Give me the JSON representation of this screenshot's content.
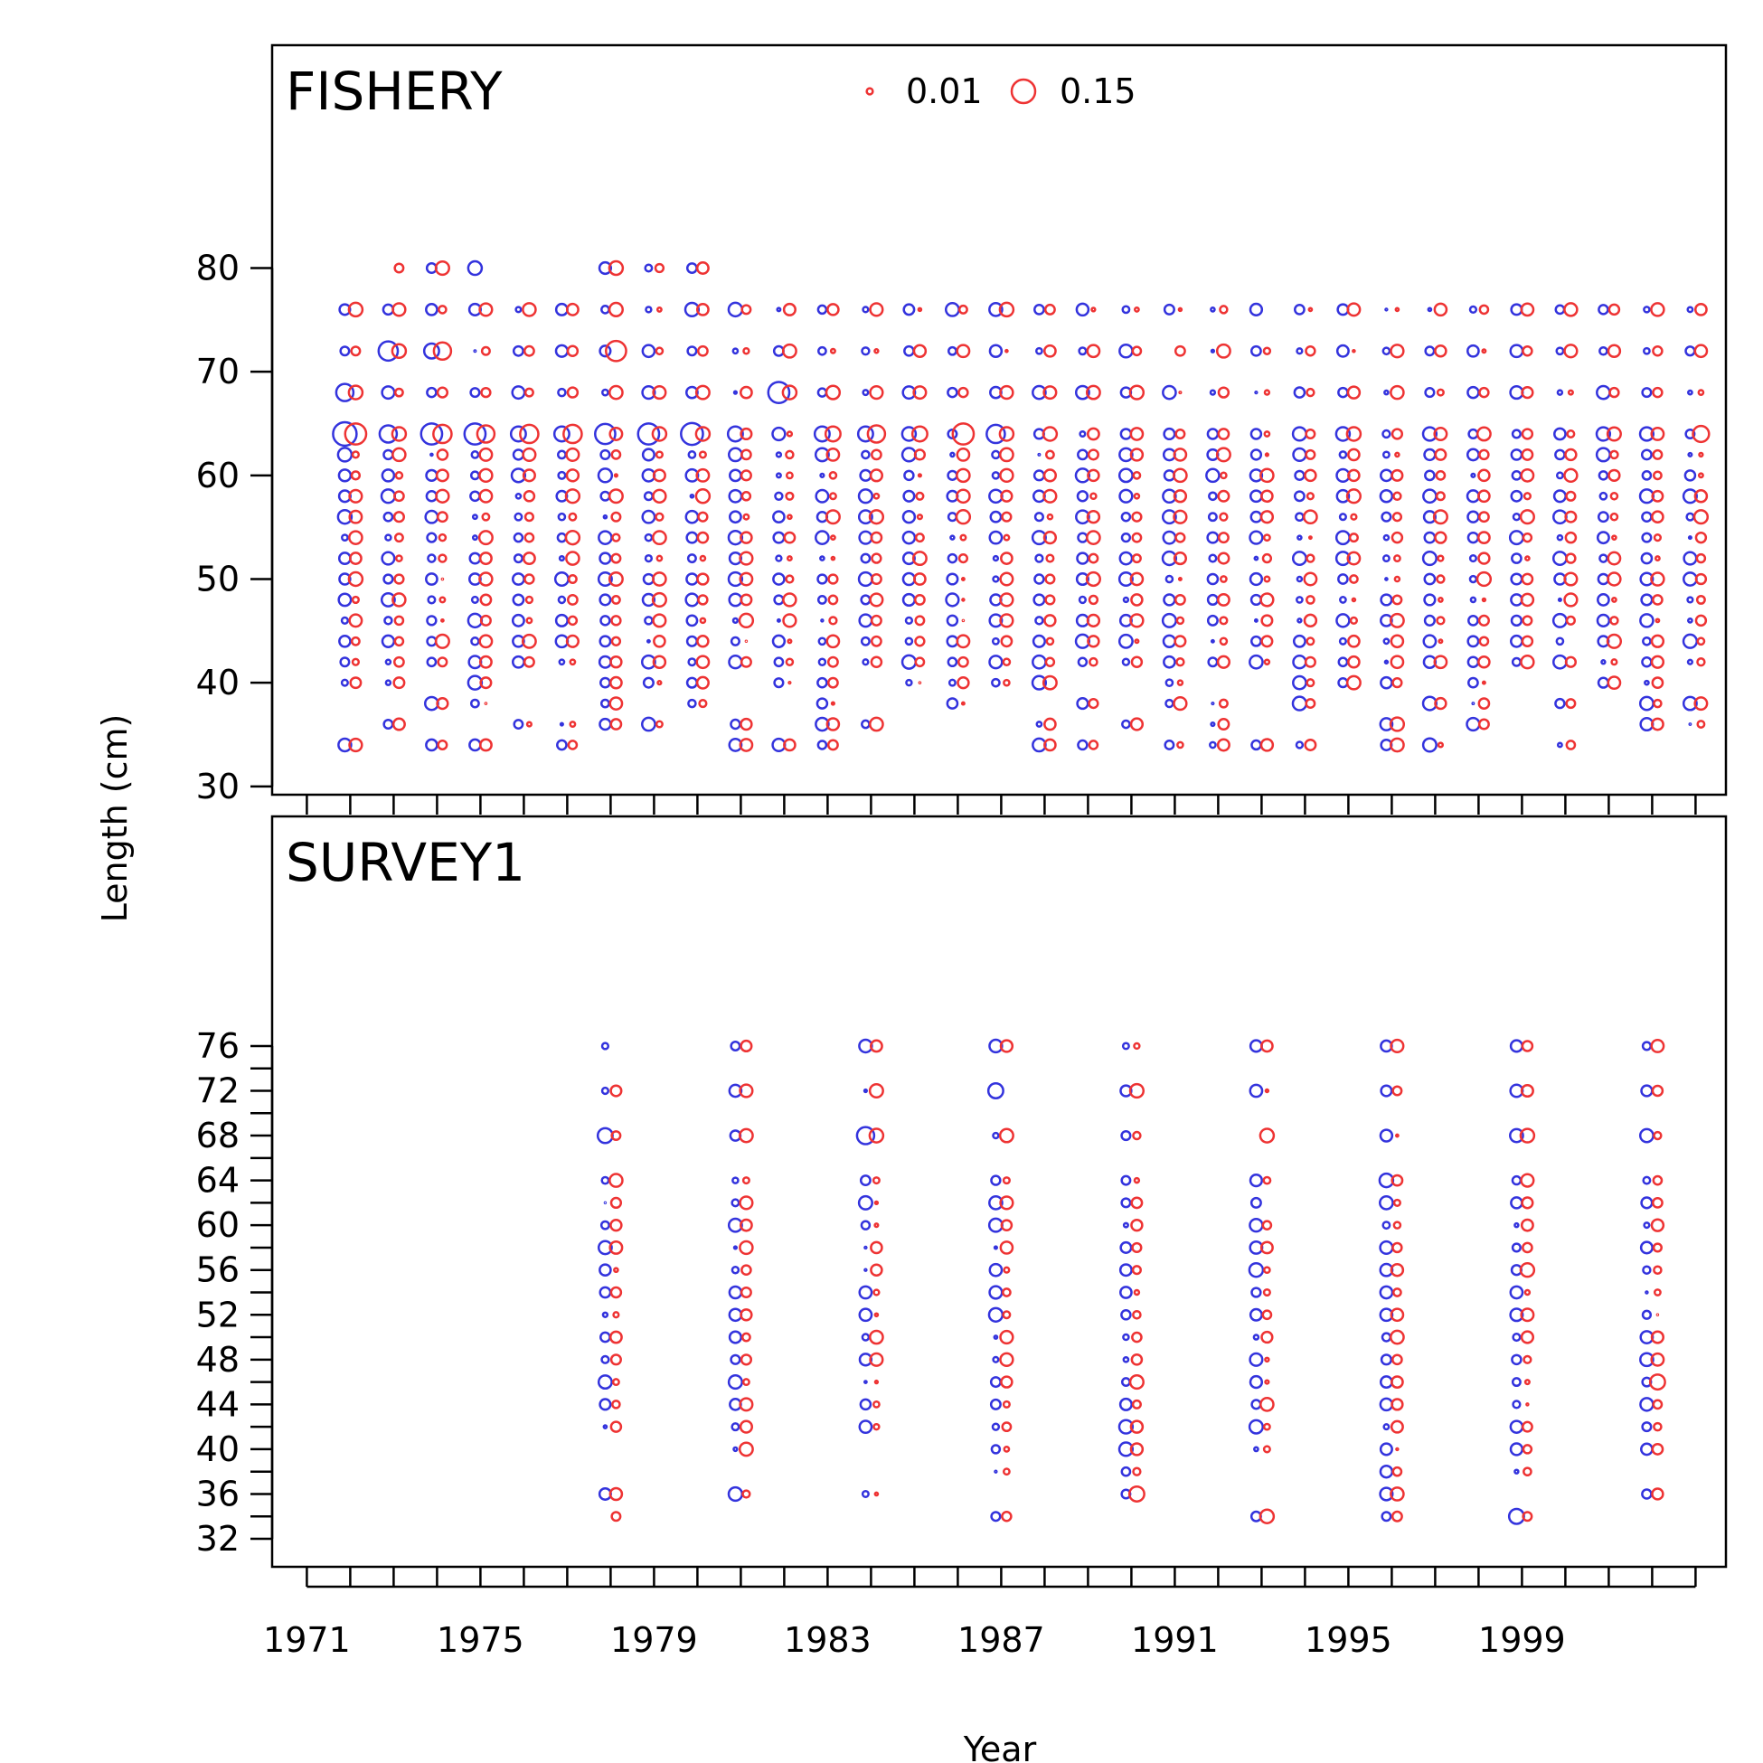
{
  "chart_data": {
    "type": "scatter",
    "subtype": "bubble",
    "xlabel": "Year",
    "ylabel": "Length (cm)",
    "x_ticks": [
      1971,
      1975,
      1979,
      1983,
      1987,
      1991,
      1995,
      1999
    ],
    "xlim": [
      1970.2,
      2003.7
    ],
    "legend": {
      "position": "top-center",
      "entries": [
        {
          "label": "0.01",
          "value": 0.01
        },
        {
          "label": "0.15",
          "value": 0.15
        }
      ]
    },
    "colors": {
      "series_a": "#3333dd",
      "series_b": "#ee3333"
    },
    "panels": [
      {
        "title": "FISHERY",
        "y_ticks": [
          30,
          40,
          50,
          60,
          70,
          80
        ],
        "ylim": [
          29.2,
          101.5
        ],
        "length_bins": [
          42,
          44,
          46,
          48,
          50,
          52,
          54,
          56,
          58,
          60,
          62,
          64,
          68,
          72,
          76
        ],
        "years": [
          1972,
          1973,
          1974,
          1975,
          1976,
          1977,
          1978,
          1979,
          1980,
          1981,
          1982,
          1983,
          1984,
          1985,
          1986,
          1987,
          1988,
          1989,
          1990,
          1991,
          1992,
          1993,
          1994,
          1995,
          1996,
          1997,
          1998,
          1999,
          2000,
          2001,
          2002,
          2003
        ],
        "points": [
          {
            "year": 1972,
            "length": 64,
            "obs": 0.15,
            "exp": 0.12
          },
          {
            "year": 1972,
            "length": 68,
            "obs": 0.08,
            "exp": 0.05
          },
          {
            "year": 1972,
            "length": 76,
            "obs": 0.03,
            "exp": 0.05
          },
          {
            "year": 1972,
            "length": 72,
            "obs": 0.02,
            "exp": 0.02
          },
          {
            "year": 1972,
            "length": 62,
            "obs": 0.05,
            "exp": 0.01
          },
          {
            "year": 1972,
            "length": 56,
            "obs": 0.05,
            "exp": 0.04
          },
          {
            "year": 1972,
            "length": 48,
            "obs": 0.04,
            "exp": 0.01
          },
          {
            "year": 1972,
            "length": 46,
            "obs": 0.01,
            "exp": 0.04
          },
          {
            "year": 1972,
            "length": 42,
            "obs": 0.02,
            "exp": 0.01
          },
          {
            "year": 1973,
            "length": 72,
            "obs": 0.1,
            "exp": 0.05
          },
          {
            "year": 1973,
            "length": 64,
            "obs": 0.08,
            "exp": 0.05
          },
          {
            "year": 1973,
            "length": 80,
            "obs": 0.0,
            "exp": 0.02
          },
          {
            "year": 1974,
            "length": 64,
            "obs": 0.12,
            "exp": 0.09
          },
          {
            "year": 1974,
            "length": 72,
            "obs": 0.06,
            "exp": 0.08
          },
          {
            "year": 1975,
            "length": 64,
            "obs": 0.12,
            "exp": 0.08
          },
          {
            "year": 1975,
            "length": 80,
            "obs": 0.05,
            "exp": 0.0
          },
          {
            "year": 1976,
            "length": 64,
            "obs": 0.06,
            "exp": 0.09
          },
          {
            "year": 1977,
            "length": 64,
            "obs": 0.06,
            "exp": 0.09
          },
          {
            "year": 1978,
            "length": 64,
            "obs": 0.11,
            "exp": 0.04
          },
          {
            "year": 1978,
            "length": 72,
            "obs": 0.03,
            "exp": 0.11
          },
          {
            "year": 1979,
            "length": 64,
            "obs": 0.12,
            "exp": 0.05
          },
          {
            "year": 1980,
            "length": 64,
            "obs": 0.13,
            "exp": 0.05
          },
          {
            "year": 1981,
            "length": 64,
            "obs": 0.06,
            "exp": 0.03
          },
          {
            "year": 1982,
            "length": 68,
            "obs": 0.12,
            "exp": 0.05
          },
          {
            "year": 1983,
            "length": 64,
            "obs": 0.06,
            "exp": 0.06
          },
          {
            "year": 1984,
            "length": 64,
            "obs": 0.06,
            "exp": 0.08
          },
          {
            "year": 1985,
            "length": 64,
            "obs": 0.05,
            "exp": 0.06
          },
          {
            "year": 1986,
            "length": 64,
            "obs": 0.02,
            "exp": 0.12
          },
          {
            "year": 1987,
            "length": 64,
            "obs": 0.09,
            "exp": 0.05
          },
          {
            "year": 1991,
            "length": 64,
            "obs": 0.03,
            "exp": 0.02
          },
          {
            "year": 1995,
            "length": 64,
            "obs": 0.05,
            "exp": 0.05
          },
          {
            "year": 2003,
            "length": 64,
            "obs": 0.02,
            "exp": 0.07
          }
        ]
      },
      {
        "title": "SURVEY1",
        "y_ticks": [
          32,
          36,
          40,
          44,
          48,
          52,
          56,
          60,
          64,
          68,
          72,
          76
        ],
        "y_minor_ticks": [
          34,
          38,
          42,
          46,
          50,
          54,
          58,
          62,
          66,
          70,
          74
        ],
        "ylim": [
          29.5,
          96.5
        ],
        "length_bins": [
          34,
          36,
          38,
          40,
          42,
          44,
          46,
          48,
          50,
          52,
          54,
          56,
          58,
          60,
          62,
          64,
          68,
          72,
          76
        ],
        "years": [
          1978,
          1981,
          1984,
          1987,
          1990,
          1993,
          1996,
          1999,
          2002
        ],
        "points": [
          {
            "year": 1978,
            "length": 76,
            "obs": 0.01,
            "exp": 0.0
          },
          {
            "year": 1978,
            "length": 72,
            "obs": 0.01,
            "exp": 0.03
          },
          {
            "year": 1978,
            "length": 68,
            "obs": 0.06,
            "exp": 0.02
          },
          {
            "year": 1978,
            "length": 34,
            "obs": 0.0,
            "exp": 0.02
          },
          {
            "year": 1981,
            "length": 76,
            "obs": 0.02,
            "exp": 0.03
          },
          {
            "year": 1984,
            "length": 68,
            "obs": 0.08,
            "exp": 0.05
          },
          {
            "year": 1987,
            "length": 72,
            "obs": 0.06,
            "exp": 0.0
          },
          {
            "year": 1990,
            "length": 36,
            "obs": 0.02,
            "exp": 0.06
          },
          {
            "year": 1993,
            "length": 68,
            "obs": 0.0,
            "exp": 0.05
          },
          {
            "year": 1996,
            "length": 72,
            "obs": 0.03,
            "exp": 0.02
          },
          {
            "year": 1999,
            "length": 34,
            "obs": 0.06,
            "exp": 0.02
          },
          {
            "year": 2002,
            "length": 46,
            "obs": 0.02,
            "exp": 0.06
          }
        ]
      }
    ]
  }
}
